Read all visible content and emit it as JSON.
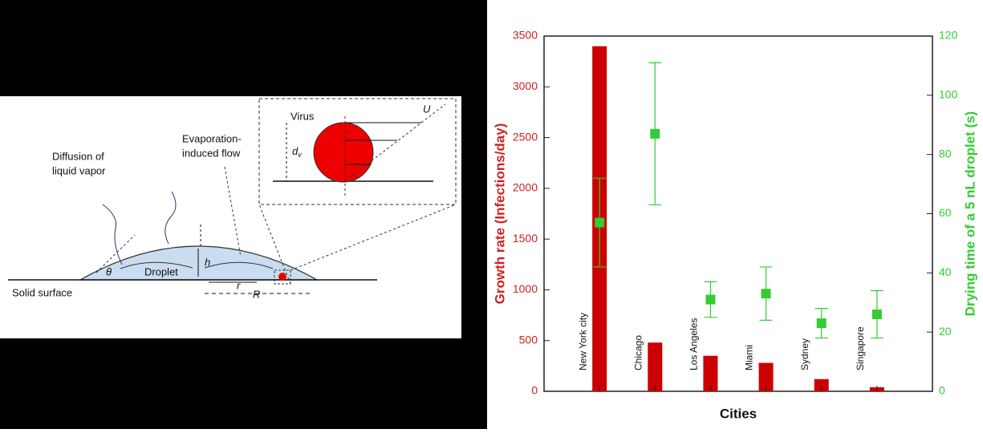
{
  "diagram": {
    "diffusion_line1": "Diffusion of",
    "diffusion_line2": "liquid vapor",
    "flow_line1": "Evaporation-",
    "flow_line2": "induced flow",
    "droplet": "Droplet",
    "surface": "Solid surface",
    "virus": "Virus",
    "theta": "θ",
    "h": "h",
    "r": "r",
    "R": "R",
    "U": "U",
    "d": "d",
    "d_sub": "v"
  },
  "chart_data": {
    "type": "bar",
    "xlabel": "Cities",
    "ylabel": "Growth rate (Infections/day)",
    "y2label": "Drying time of a 5 nL droplet (s)",
    "categories": [
      "New York city",
      "Chicago",
      "Los Angeles",
      "Miami",
      "Sydney",
      "Singapore"
    ],
    "series": [
      {
        "type": "bar",
        "color": "#cc0000",
        "values": [
          3400,
          480,
          350,
          280,
          120,
          40
        ]
      },
      {
        "type": "scatter",
        "axis": "y2",
        "color": "#33cc33",
        "values": [
          57,
          87,
          31,
          33,
          23,
          26
        ],
        "errors": [
          15,
          24,
          6,
          9,
          5,
          8
        ]
      }
    ],
    "ylim": [
      0,
      3500
    ],
    "yticks": [
      0,
      500,
      1000,
      1500,
      2000,
      2500,
      3000,
      3500
    ],
    "y2lim": [
      0,
      120
    ],
    "y2ticks": [
      0,
      20,
      40,
      60,
      80,
      100,
      120
    ],
    "ycolor": "#cc2222",
    "y2color": "#33cc33"
  }
}
